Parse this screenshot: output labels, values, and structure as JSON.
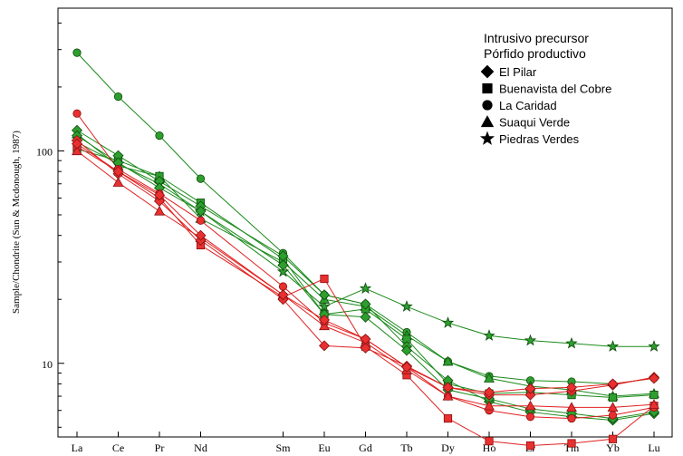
{
  "chart_data": {
    "type": "line",
    "yscale": "log",
    "ylabel": "Sample/Chondrite (Sun & Mcdonough, 1987)",
    "ylim": [
      4.5,
      470
    ],
    "yticks": [
      {
        "value": 10,
        "label": "10"
      },
      {
        "value": 100,
        "label": "100"
      }
    ],
    "elements": [
      "La",
      "Ce",
      "Pr",
      "Nd",
      "Sm",
      "Eu",
      "Gd",
      "Tb",
      "Dy",
      "Ho",
      "Er",
      "Tm",
      "Yb",
      "Lu"
    ],
    "element_positions": [
      1,
      2,
      3,
      4,
      6,
      7,
      8,
      9,
      10,
      11,
      12,
      13,
      14,
      15
    ],
    "groups": [
      {
        "key": "precursor",
        "label": "Intrusivo precursor",
        "color": "#1a8a1a",
        "fill": "#2e9e2e"
      },
      {
        "key": "productive",
        "label": "Pórfido productivo",
        "color": "#e02020",
        "fill": "#e83030"
      }
    ],
    "marker_legend": [
      {
        "marker": "diamond",
        "label": "El Pilar"
      },
      {
        "marker": "square",
        "label": "Buenavista del Cobre"
      },
      {
        "marker": "circle",
        "label": "La Caridad"
      },
      {
        "marker": "triangle",
        "label": "Suaqui Verde"
      },
      {
        "marker": "star",
        "label": "Piedras Verdes"
      }
    ],
    "series": [
      {
        "name": "La Caridad (precursor)",
        "group": "precursor",
        "marker": "circle",
        "values": [
          290,
          180,
          118,
          74,
          33,
          21,
          19,
          14,
          10.2,
          8.7,
          8.3,
          8.2,
          8.0,
          8.5
        ]
      },
      {
        "name": "Piedras Verdes (precursor)",
        "group": "precursor",
        "marker": "star",
        "values": [
          110,
          87,
          70,
          52,
          27,
          18.5,
          22.5,
          18.5,
          15.5,
          13.5,
          12.8,
          12.4,
          12.0,
          12.0
        ]
      },
      {
        "name": "Suaqui Verde (precursor)",
        "group": "precursor",
        "marker": "triangle",
        "values": [
          120,
          85,
          76,
          48,
          30,
          20,
          18.5,
          13.5,
          10.2,
          8.5,
          7.8,
          7.5,
          7.0,
          7.2
        ]
      },
      {
        "name": "Buenavista del Cobre (precursor)",
        "group": "precursor",
        "marker": "square",
        "values": [
          102,
          90,
          76,
          57,
          31,
          17,
          18,
          13,
          8.0,
          7.2,
          7.3,
          7.1,
          6.9,
          7.1
        ]
      },
      {
        "name": "El Pilar (precursor 1)",
        "group": "precursor",
        "marker": "diamond",
        "values": [
          125,
          95,
          72,
          55,
          32,
          21,
          19,
          12,
          8.3,
          6.6,
          5.9,
          5.6,
          5.4,
          5.8
        ]
      },
      {
        "name": "El Pilar (precursor 2)",
        "group": "precursor",
        "marker": "diamond",
        "values": [
          118,
          88,
          67,
          52,
          29,
          17,
          16.5,
          11.5,
          7.5,
          6.8,
          6.1,
          5.8,
          5.5,
          5.9
        ]
      },
      {
        "name": "Buenavista del Cobre (productive)",
        "group": "productive",
        "marker": "square",
        "values": [
          105,
          80,
          60,
          36,
          20.5,
          25,
          12,
          8.8,
          5.5,
          4.3,
          4.1,
          4.2,
          4.4,
          6.3
        ]
      },
      {
        "name": "La Caridad (productive)",
        "group": "productive",
        "marker": "circle",
        "values": [
          150,
          82,
          63,
          47,
          23,
          15.5,
          13,
          9.6,
          7.0,
          6.0,
          5.6,
          5.5,
          5.7,
          6.2
        ]
      },
      {
        "name": "Suaqui Verde (productive)",
        "group": "productive",
        "marker": "triangle",
        "values": [
          100,
          71,
          52,
          39,
          21,
          15,
          12.5,
          9.3,
          7.0,
          6.3,
          6.3,
          6.2,
          6.2,
          6.4
        ]
      },
      {
        "name": "El Pilar (productive 1)",
        "group": "productive",
        "marker": "diamond",
        "values": [
          112,
          78,
          58,
          38,
          20,
          12.1,
          11.8,
          9.7,
          7.7,
          7.1,
          7.1,
          7.4,
          7.9,
          8.6
        ]
      },
      {
        "name": "El Pilar (productive 2)",
        "group": "productive",
        "marker": "diamond",
        "values": [
          108,
          80,
          62,
          40,
          21,
          16,
          13,
          9.6,
          7.7,
          7.3,
          7.6,
          7.7,
          8.0,
          8.5
        ]
      }
    ]
  }
}
